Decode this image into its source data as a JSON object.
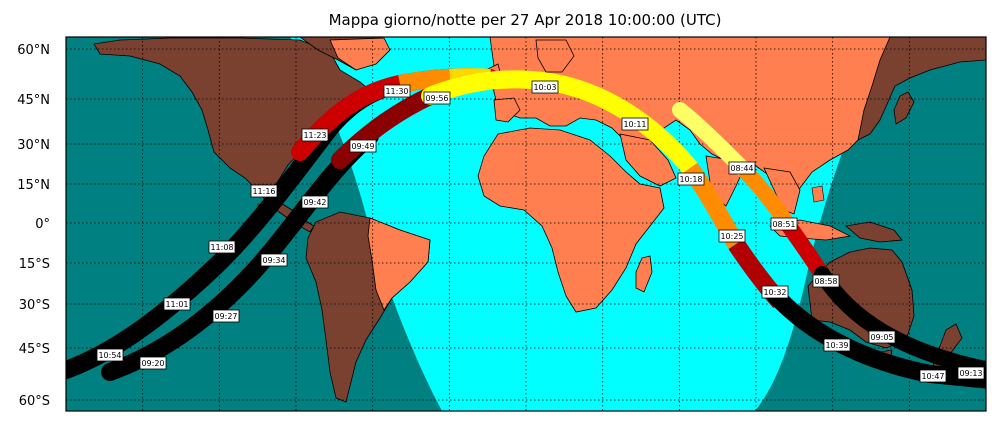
{
  "title": "Mappa giorno/notte per 27 Apr 2018 10:00:00 (UTC)",
  "colors": {
    "ocean_night": "#008080",
    "ocean_day": "#00FFFF",
    "land_night": "#7A4030",
    "land_day": "#FF7F50",
    "path_shadow": "#000000",
    "path_dark_red": "#8B0000",
    "path_red": "#FF0000",
    "path_orange": "#FFA500",
    "path_yellow": "#FFFF00"
  },
  "lat_labels": [
    "60°N",
    "45°N",
    "30°N",
    "15°N",
    "0°",
    "15°S",
    "30°S",
    "45°S",
    "60°S"
  ],
  "time_labels": [
    "11:30",
    "09:56",
    "10:03",
    "10:11",
    "11:23",
    "09:49",
    "10:18",
    "08:44",
    "11:16",
    "09:42",
    "10:25",
    "08:51",
    "11:08",
    "09:34",
    "10:32",
    "08:58",
    "11:01",
    "09:27",
    "10:39",
    "09:05",
    "10:54",
    "09:20",
    "10:47",
    "09:13"
  ]
}
